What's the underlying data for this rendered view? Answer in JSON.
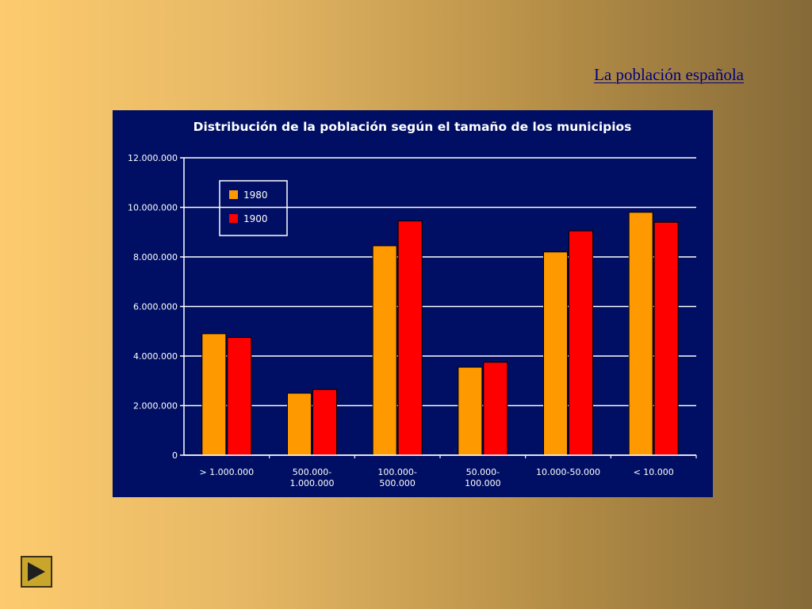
{
  "slide": {
    "title": "La población española"
  },
  "navigation": {
    "next_icon": "play-icon"
  },
  "chart_data": {
    "type": "bar",
    "title": "Distribución de la población según el tamaño de los municipios",
    "categories": [
      [
        "> 1.000.000"
      ],
      [
        "500.000-",
        "1.000.000"
      ],
      [
        "100.000-",
        "500.000"
      ],
      [
        "50.000-",
        "100.000"
      ],
      [
        "10.000-50.000"
      ],
      [
        "< 10.000"
      ]
    ],
    "series": [
      {
        "name": "1980",
        "color": "#ff9900",
        "values": [
          4900000,
          2500000,
          8450000,
          3550000,
          8200000,
          9800000
        ]
      },
      {
        "name": "1900",
        "color": "#ff0000",
        "values": [
          4750000,
          2650000,
          9450000,
          3750000,
          9050000,
          9400000
        ]
      }
    ],
    "ylim": [
      0,
      12000000
    ],
    "yticks": [
      0,
      2000000,
      4000000,
      6000000,
      8000000,
      10000000,
      12000000
    ],
    "ytick_labels": [
      "0",
      "2.000.000",
      "4.000.000",
      "6.000.000",
      "8.000.000",
      "10.000.000",
      "12.000.000"
    ],
    "grid": true,
    "legend": "top-left"
  }
}
